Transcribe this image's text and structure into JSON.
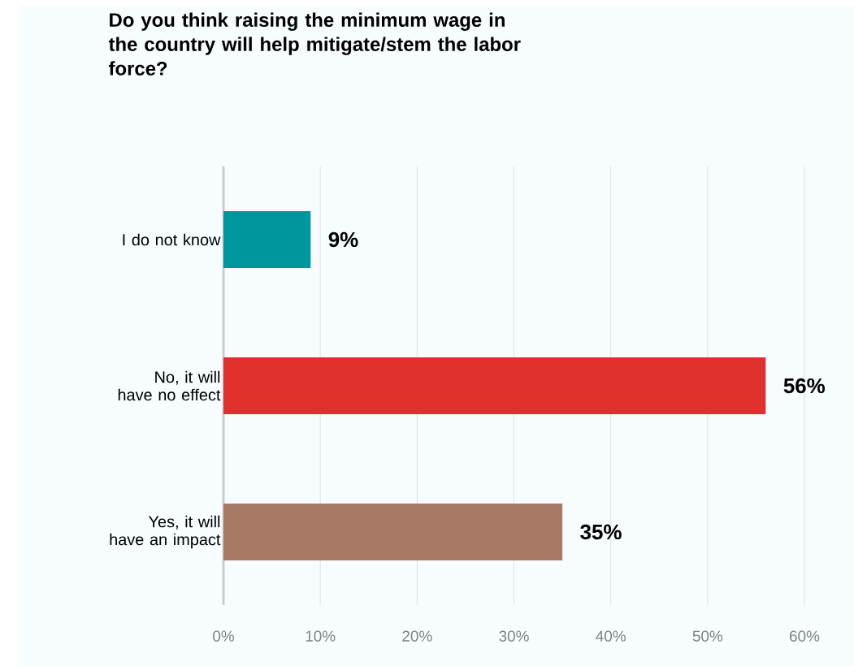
{
  "chart_data": {
    "type": "bar",
    "orientation": "horizontal",
    "title": "Do you think raising the minimum wage in the country will help mitigate/stem the labor force?",
    "categories": [
      "I do not know",
      "No, it will have no effect",
      "Yes, it will have an impact"
    ],
    "values": [
      9,
      56,
      35
    ],
    "colors": [
      "#00969e",
      "#e0302e",
      "#a87a66"
    ],
    "value_labels": [
      "9%",
      "56%",
      "35%"
    ],
    "xlim": [
      0,
      60
    ],
    "xticks": [
      {
        "value": 0,
        "label": "0%"
      },
      {
        "value": 10,
        "label": "10%"
      },
      {
        "value": 20,
        "label": "20%"
      },
      {
        "value": 30,
        "label": "30%"
      },
      {
        "value": 40,
        "label": "40%"
      },
      {
        "value": 50,
        "label": "50%"
      },
      {
        "value": 60,
        "label": "60%"
      }
    ],
    "grid": "x"
  }
}
